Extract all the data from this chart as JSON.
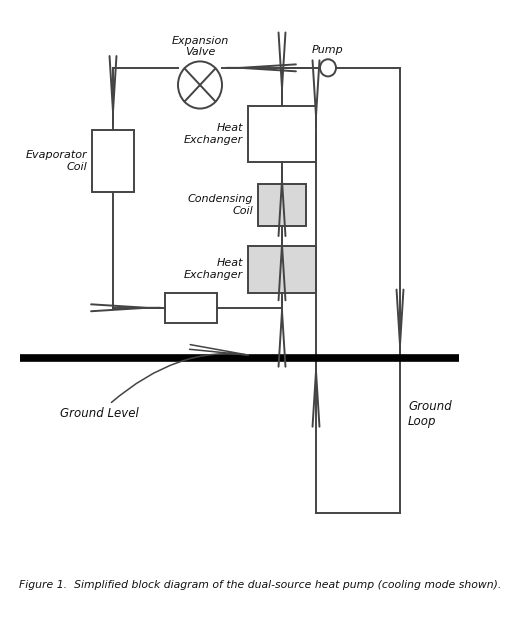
{
  "title": "Figure 1.  Simplified block diagram of the dual-source heat pump (cooling mode shown).",
  "background_color": "#ffffff",
  "figure_bg": "#b8c8d8",
  "line_color": "#444444",
  "box_fill_white": "#ffffff",
  "box_fill_gray": "#d8d8d8",
  "box_edge": "#444444",
  "ground_line_color": "#000000",
  "caption_text_color": "#111111"
}
